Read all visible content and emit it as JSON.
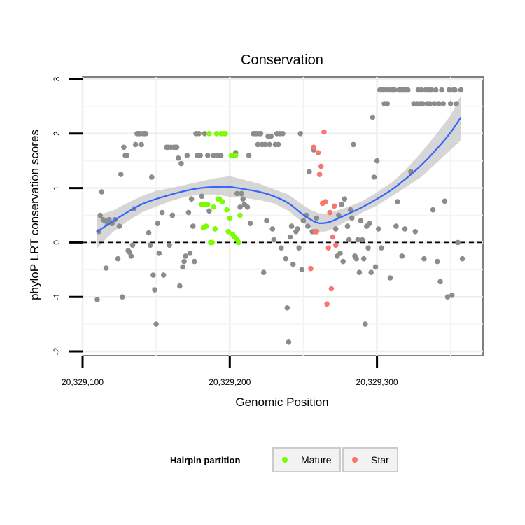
{
  "chart_data": {
    "type": "scatter",
    "title": "Conservation",
    "xlabel": "Genomic Position",
    "ylabel": "phyloP LRT conservation scores",
    "xlim": [
      20329100,
      20329372
    ],
    "ylim": [
      -2,
      3
    ],
    "x_ticks": [
      20329100,
      20329200,
      20329300
    ],
    "x_tick_labels": [
      "20,329,100",
      "20,329,200",
      "20,329,300"
    ],
    "y_ticks": [
      -2,
      -1,
      0,
      1,
      2,
      3
    ],
    "y_tick_labels": [
      "-2",
      "-1",
      "0",
      "1",
      "2",
      "3"
    ],
    "reference_line": {
      "y": 0,
      "style": "dashed"
    },
    "grid": true,
    "legend": {
      "title": "Hairpin partition",
      "position": "bottom",
      "entries": [
        {
          "label": "Mature",
          "color": "#7cfc00"
        },
        {
          "label": "Star",
          "color": "#f8766d"
        }
      ]
    },
    "colors": {
      "other": "#8c8c8c",
      "Mature": "#7cfc00",
      "Star": "#f8766d",
      "smooth": "#3366ff",
      "band": "#c8c8c8"
    },
    "series": [
      {
        "name": "",
        "color": "#8c8c8c",
        "points": [
          [
            20329110,
            -1.05
          ],
          [
            20329111,
            0.2
          ],
          [
            20329112,
            0.5
          ],
          [
            20329113,
            0.93
          ],
          [
            20329114,
            0.42
          ],
          [
            20329115,
            0.4
          ],
          [
            20329116,
            -0.47
          ],
          [
            20329117,
            0.35
          ],
          [
            20329118,
            0.42
          ],
          [
            20329120,
            0.35
          ],
          [
            20329122,
            0.42
          ],
          [
            20329124,
            -0.3
          ],
          [
            20329125,
            0.3
          ],
          [
            20329126,
            1.25
          ],
          [
            20329127,
            -1.0
          ],
          [
            20329128,
            1.75
          ],
          [
            20329129,
            1.6
          ],
          [
            20329130,
            1.6
          ],
          [
            20329131,
            -0.15
          ],
          [
            20329132,
            -0.18
          ],
          [
            20329133,
            -0.25
          ],
          [
            20329134,
            -0.05
          ],
          [
            20329135,
            0.62
          ],
          [
            20329136,
            1.8
          ],
          [
            20329137,
            2.0
          ],
          [
            20329138,
            2.0
          ],
          [
            20329139,
            2.0
          ],
          [
            20329140,
            1.8
          ],
          [
            20329141,
            2.0
          ],
          [
            20329142,
            2.0
          ],
          [
            20329143,
            2.0
          ],
          [
            20329145,
            0.18
          ],
          [
            20329146,
            -0.05
          ],
          [
            20329147,
            1.2
          ],
          [
            20329148,
            -0.6
          ],
          [
            20329149,
            -0.87
          ],
          [
            20329150,
            -1.5
          ],
          [
            20329151,
            0.35
          ],
          [
            20329152,
            -0.2
          ],
          [
            20329154,
            0.55
          ],
          [
            20329155,
            -0.6
          ],
          [
            20329157,
            1.75
          ],
          [
            20329158,
            1.75
          ],
          [
            20329159,
            -0.05
          ],
          [
            20329160,
            1.75
          ],
          [
            20329161,
            0.5
          ],
          [
            20329162,
            1.75
          ],
          [
            20329163,
            1.75
          ],
          [
            20329164,
            1.75
          ],
          [
            20329165,
            1.55
          ],
          [
            20329166,
            -0.8
          ],
          [
            20329167,
            1.45
          ],
          [
            20329168,
            -0.45
          ],
          [
            20329169,
            -0.35
          ],
          [
            20329170,
            -0.25
          ],
          [
            20329171,
            1.6
          ],
          [
            20329172,
            0.55
          ],
          [
            20329173,
            -0.2
          ],
          [
            20329174,
            0.8
          ],
          [
            20329175,
            0.3
          ],
          [
            20329176,
            -0.35
          ],
          [
            20329177,
            2.0
          ],
          [
            20329178,
            1.6
          ],
          [
            20329179,
            2.0
          ],
          [
            20329180,
            1.6
          ],
          [
            20329181,
            0.85
          ],
          [
            20329183,
            2.0
          ],
          [
            20329185,
            1.6
          ],
          [
            20329186,
            0.58
          ],
          [
            20329189,
            1.6
          ],
          [
            20329192,
            1.6
          ],
          [
            20329194,
            1.6
          ],
          [
            20329202,
            1.6
          ],
          [
            20329204,
            1.65
          ],
          [
            20329205,
            0.9
          ],
          [
            20329207,
            0.65
          ],
          [
            20329208,
            0.9
          ],
          [
            20329209,
            0.8
          ],
          [
            20329210,
            0.7
          ],
          [
            20329212,
            0.65
          ],
          [
            20329213,
            1.6
          ],
          [
            20329214,
            0.35
          ],
          [
            20329216,
            2.0
          ],
          [
            20329217,
            2.0
          ],
          [
            20329218,
            2.0
          ],
          [
            20329219,
            1.8
          ],
          [
            20329220,
            2.0
          ],
          [
            20329221,
            2.0
          ],
          [
            20329222,
            1.8
          ],
          [
            20329223,
            -0.55
          ],
          [
            20329224,
            1.8
          ],
          [
            20329225,
            0.4
          ],
          [
            20329226,
            1.95
          ],
          [
            20329227,
            1.8
          ],
          [
            20329228,
            1.95
          ],
          [
            20329229,
            0.25
          ],
          [
            20329230,
            0.05
          ],
          [
            20329231,
            1.8
          ],
          [
            20329232,
            2.0
          ],
          [
            20329233,
            1.8
          ],
          [
            20329234,
            2.0
          ],
          [
            20329235,
            -0.1
          ],
          [
            20329236,
            2.0
          ],
          [
            20329238,
            -0.3
          ],
          [
            20329239,
            -1.2
          ],
          [
            20329240,
            -1.83
          ],
          [
            20329241,
            0.1
          ],
          [
            20329242,
            0.3
          ],
          [
            20329243,
            -0.4
          ],
          [
            20329245,
            0.2
          ],
          [
            20329246,
            0.25
          ],
          [
            20329247,
            -0.1
          ],
          [
            20329248,
            2.0
          ],
          [
            20329249,
            -0.5
          ],
          [
            20329250,
            0.4
          ],
          [
            20329252,
            0.5
          ],
          [
            20329253,
            0.3
          ],
          [
            20329254,
            1.3
          ],
          [
            20329256,
            0.2
          ],
          [
            20329257,
            1.7
          ],
          [
            20329259,
            0.45
          ],
          [
            20329272,
            0.25
          ],
          [
            20329273,
            -0.25
          ],
          [
            20329274,
            0.5
          ],
          [
            20329275,
            -0.2
          ],
          [
            20329276,
            0.7
          ],
          [
            20329277,
            -0.35
          ],
          [
            20329278,
            0.8
          ],
          [
            20329280,
            0.3
          ],
          [
            20329281,
            0.05
          ],
          [
            20329282,
            0.6
          ],
          [
            20329283,
            0.45
          ],
          [
            20329284,
            1.8
          ],
          [
            20329285,
            -0.25
          ],
          [
            20329286,
            -0.3
          ],
          [
            20329287,
            0.05
          ],
          [
            20329288,
            -0.55
          ],
          [
            20329289,
            0.4
          ],
          [
            20329290,
            0.05
          ],
          [
            20329291,
            -0.3
          ],
          [
            20329292,
            -1.5
          ],
          [
            20329293,
            0.3
          ],
          [
            20329294,
            -0.1
          ],
          [
            20329295,
            0.35
          ],
          [
            20329296,
            -0.55
          ],
          [
            20329297,
            2.3
          ],
          [
            20329298,
            1.2
          ],
          [
            20329299,
            -0.45
          ],
          [
            20329300,
            1.5
          ],
          [
            20329301,
            0.25
          ],
          [
            20329302,
            2.8
          ],
          [
            20329303,
            -0.1
          ],
          [
            20329304,
            2.8
          ],
          [
            20329305,
            2.55
          ],
          [
            20329306,
            2.8
          ],
          [
            20329307,
            2.55
          ],
          [
            20329308,
            2.8
          ],
          [
            20329309,
            -0.65
          ],
          [
            20329310,
            2.8
          ],
          [
            20329311,
            2.8
          ],
          [
            20329312,
            2.8
          ],
          [
            20329313,
            0.3
          ],
          [
            20329314,
            0.75
          ],
          [
            20329315,
            2.8
          ],
          [
            20329316,
            2.8
          ],
          [
            20329317,
            -0.25
          ],
          [
            20329318,
            2.8
          ],
          [
            20329319,
            0.25
          ],
          [
            20329320,
            2.8
          ],
          [
            20329321,
            2.8
          ],
          [
            20329323,
            1.3
          ],
          [
            20329325,
            2.55
          ],
          [
            20329326,
            0.2
          ],
          [
            20329327,
            2.55
          ],
          [
            20329328,
            2.8
          ],
          [
            20329329,
            2.55
          ],
          [
            20329330,
            2.8
          ],
          [
            20329331,
            2.55
          ],
          [
            20329332,
            -0.3
          ],
          [
            20329333,
            2.8
          ],
          [
            20329334,
            2.55
          ],
          [
            20329335,
            2.8
          ],
          [
            20329336,
            2.55
          ],
          [
            20329337,
            2.8
          ],
          [
            20329338,
            0.6
          ],
          [
            20329339,
            2.55
          ],
          [
            20329340,
            2.8
          ],
          [
            20329341,
            -0.35
          ],
          [
            20329342,
            2.55
          ],
          [
            20329343,
            -0.72
          ],
          [
            20329344,
            2.8
          ],
          [
            20329345,
            2.55
          ],
          [
            20329346,
            0.76
          ],
          [
            20329348,
            -1.0
          ],
          [
            20329349,
            2.8
          ],
          [
            20329350,
            2.55
          ],
          [
            20329351,
            -0.97
          ],
          [
            20329352,
            2.8
          ],
          [
            20329353,
            2.8
          ],
          [
            20329354,
            2.55
          ],
          [
            20329355,
            0.0
          ],
          [
            20329357,
            2.8
          ],
          [
            20329358,
            -0.3
          ]
        ]
      },
      {
        "name": "Mature",
        "color": "#7cfc00",
        "points": [
          [
            20329181,
            0.7
          ],
          [
            20329182,
            0.27
          ],
          [
            20329183,
            0.7
          ],
          [
            20329184,
            0.3
          ],
          [
            20329185,
            0.7
          ],
          [
            20329186,
            2.0
          ],
          [
            20329187,
            0.0
          ],
          [
            20329188,
            0.0
          ],
          [
            20329189,
            0.65
          ],
          [
            20329190,
            0.25
          ],
          [
            20329191,
            2.0
          ],
          [
            20329192,
            0.8
          ],
          [
            20329193,
            0.8
          ],
          [
            20329194,
            2.0
          ],
          [
            20329195,
            0.75
          ],
          [
            20329196,
            2.0
          ],
          [
            20329197,
            2.0
          ],
          [
            20329198,
            0.6
          ],
          [
            20329199,
            0.2
          ],
          [
            20329200,
            0.45
          ],
          [
            20329201,
            1.6
          ],
          [
            20329202,
            0.15
          ],
          [
            20329203,
            0.1
          ],
          [
            20329204,
            1.6
          ],
          [
            20329205,
            0.05
          ],
          [
            20329206,
            0.0
          ],
          [
            20329207,
            0.5
          ]
        ]
      },
      {
        "name": "Star",
        "color": "#f8766d",
        "points": [
          [
            20329255,
            -0.48
          ],
          [
            20329257,
            1.75
          ],
          [
            20329258,
            0.2
          ],
          [
            20329259,
            0.2
          ],
          [
            20329260,
            1.65
          ],
          [
            20329261,
            1.25
          ],
          [
            20329262,
            1.4
          ],
          [
            20329263,
            0.72
          ],
          [
            20329264,
            2.03
          ],
          [
            20329265,
            0.75
          ],
          [
            20329266,
            -1.13
          ],
          [
            20329267,
            -0.1
          ],
          [
            20329268,
            0.55
          ],
          [
            20329269,
            -0.85
          ],
          [
            20329270,
            0.1
          ],
          [
            20329271,
            0.67
          ],
          [
            20329272,
            -0.05
          ]
        ]
      }
    ],
    "smooth": {
      "color": "#3366ff",
      "x": [
        20329110,
        20329120,
        20329130,
        20329140,
        20329150,
        20329160,
        20329170,
        20329180,
        20329190,
        20329200,
        20329210,
        20329220,
        20329230,
        20329240,
        20329248,
        20329255,
        20329260,
        20329265,
        20329270,
        20329280,
        20329290,
        20329300,
        20329310,
        20329320,
        20329330,
        20329340,
        20329350,
        20329357
      ],
      "y": [
        0.2,
        0.38,
        0.55,
        0.7,
        0.8,
        0.88,
        0.95,
        1.0,
        1.02,
        1.02,
        0.98,
        0.93,
        0.85,
        0.72,
        0.55,
        0.42,
        0.36,
        0.36,
        0.4,
        0.52,
        0.65,
        0.8,
        0.97,
        1.18,
        1.42,
        1.7,
        2.02,
        2.3
      ],
      "lower": [
        -0.1,
        0.18,
        0.38,
        0.55,
        0.66,
        0.76,
        0.84,
        0.88,
        0.88,
        0.84,
        0.82,
        0.78,
        0.72,
        0.58,
        0.4,
        0.27,
        0.2,
        0.2,
        0.25,
        0.4,
        0.55,
        0.68,
        0.85,
        1.02,
        1.2,
        1.45,
        1.7,
        1.88
      ],
      "upper": [
        0.5,
        0.58,
        0.72,
        0.85,
        0.95,
        1.0,
        1.06,
        1.12,
        1.18,
        1.22,
        1.15,
        1.08,
        0.98,
        0.88,
        0.72,
        0.6,
        0.54,
        0.53,
        0.56,
        0.65,
        0.76,
        0.92,
        1.1,
        1.35,
        1.65,
        1.98,
        2.33,
        2.7
      ]
    }
  }
}
